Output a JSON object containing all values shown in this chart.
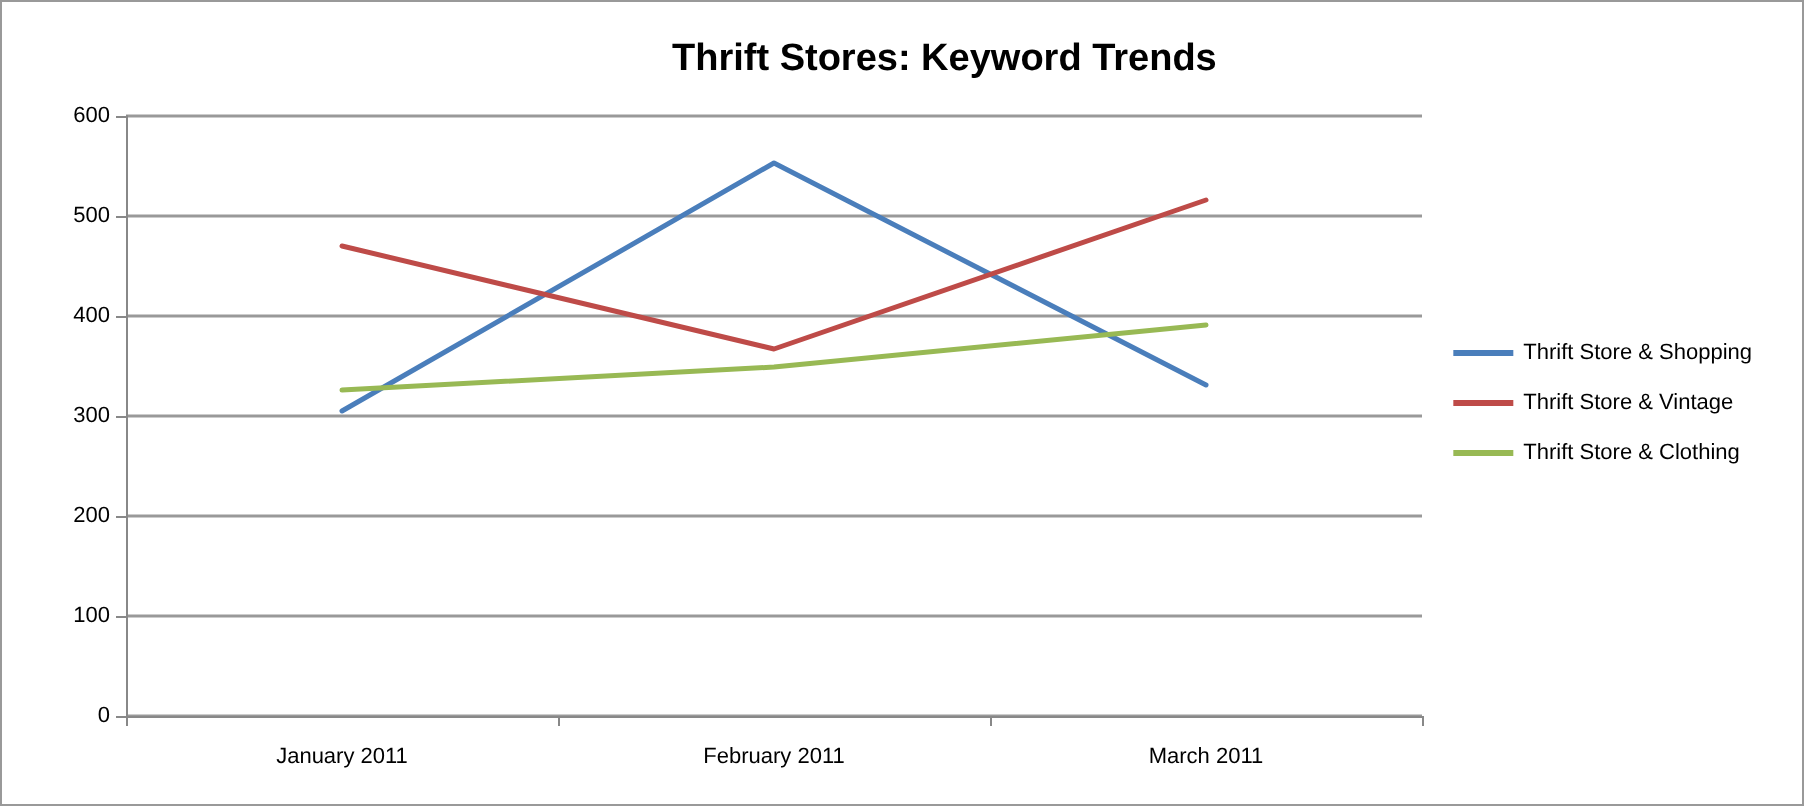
{
  "chart_data": {
    "type": "line",
    "title": "Thrift Stores: Keyword Trends",
    "categories": [
      "January 2011",
      "February 2011",
      "March 2011"
    ],
    "series": [
      {
        "name": "Thrift Store & Shopping",
        "color": "#4a7ebb",
        "values": [
          305,
          553,
          331
        ]
      },
      {
        "name": "Thrift Store & Vintage",
        "color": "#be4b48",
        "values": [
          470,
          367,
          516
        ]
      },
      {
        "name": "Thrift Store & Clothing",
        "color": "#98b954",
        "values": [
          326,
          349,
          391
        ]
      }
    ],
    "ylim": [
      0,
      600
    ],
    "yticks": [
      0,
      100,
      200,
      300,
      400,
      500,
      600
    ],
    "grid": "y",
    "legend": "right",
    "marker": "none"
  }
}
